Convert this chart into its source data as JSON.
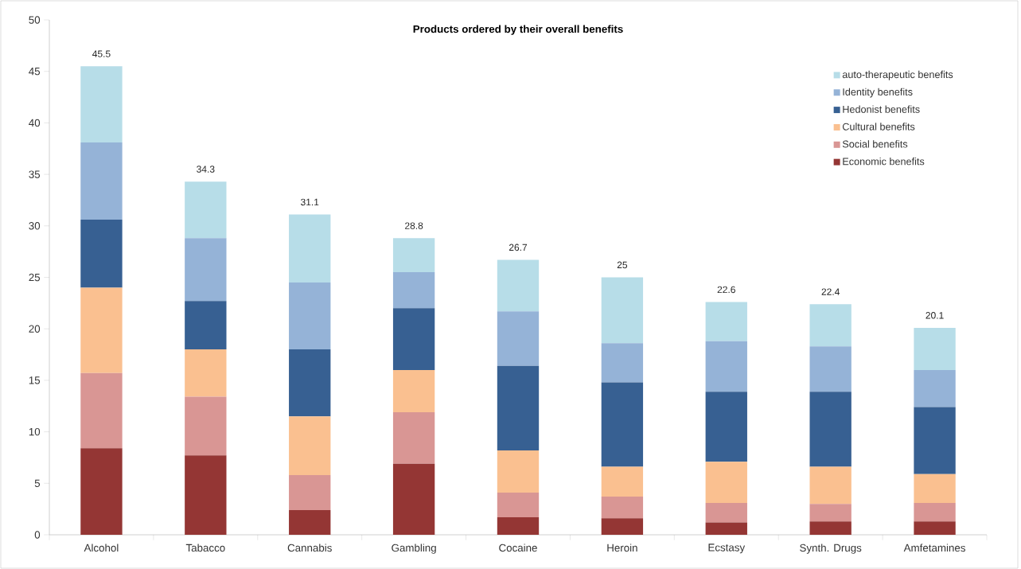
{
  "chart_data": {
    "type": "bar",
    "stacked": true,
    "title": "Products ordered by their overall benefits",
    "categories": [
      "Alcohol",
      "Tabacco",
      "Cannabis",
      "Gambling",
      "Cocaine",
      "Heroin",
      "Ecstasy",
      "Synth. Drugs",
      "Amfetamines"
    ],
    "series": [
      {
        "name": "Economic benefits",
        "color": "#943634",
        "values": [
          8.4,
          7.7,
          2.4,
          6.9,
          1.7,
          1.6,
          1.2,
          1.3,
          1.3
        ]
      },
      {
        "name": "Social benefits",
        "color": "#d99694",
        "values": [
          7.3,
          5.7,
          3.4,
          5.0,
          2.4,
          2.1,
          1.9,
          1.7,
          1.8
        ]
      },
      {
        "name": "Cultural benefits",
        "color": "#fac090",
        "values": [
          8.3,
          4.6,
          5.7,
          4.1,
          4.1,
          2.9,
          4.0,
          3.6,
          2.8
        ]
      },
      {
        "name": "Hedonist benefits",
        "color": "#376092",
        "values": [
          6.6,
          4.7,
          6.5,
          6.0,
          8.2,
          8.2,
          6.8,
          7.3,
          6.5
        ]
      },
      {
        "name": "Identity benefits",
        "color": "#95b3d7",
        "values": [
          7.5,
          6.1,
          6.5,
          3.5,
          5.3,
          3.8,
          4.9,
          4.4,
          3.6
        ]
      },
      {
        "name": "auto-therapeutic benefits",
        "color": "#b7dde8",
        "values": [
          7.4,
          5.5,
          6.6,
          3.3,
          5.0,
          6.4,
          3.8,
          4.1,
          4.1
        ]
      }
    ],
    "totals": [
      "45.5",
      "34.3",
      "31.1",
      "28.8",
      "26.7",
      "25",
      "22.6",
      "22.4",
      "20.1"
    ],
    "ylim": [
      0,
      50
    ],
    "yticks": [
      0,
      5,
      10,
      15,
      20,
      25,
      30,
      35,
      40,
      45,
      50
    ],
    "legend": "top right"
  }
}
